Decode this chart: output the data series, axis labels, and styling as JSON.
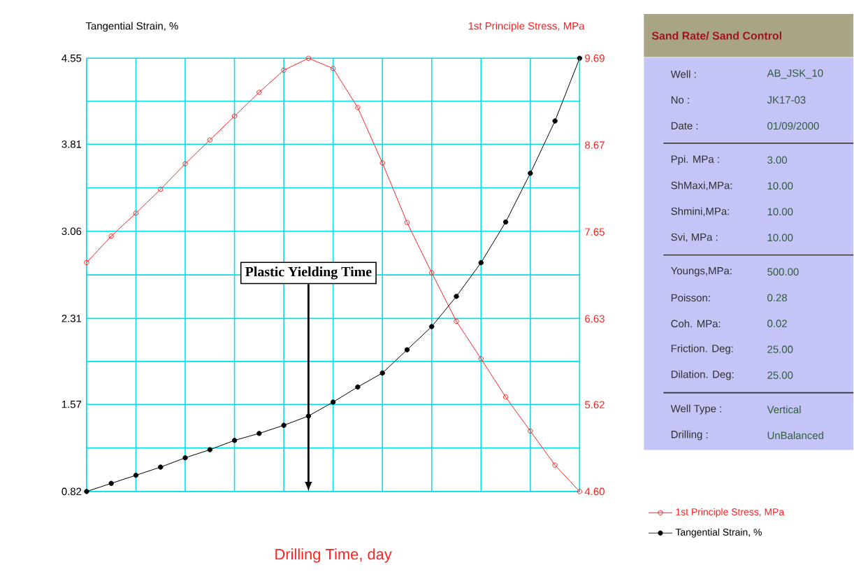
{
  "chart_data": [
    {
      "type": "line",
      "xlabel": "Drilling Time, day",
      "ylabel": "Tangential Strain, %",
      "y2label": "1st Principle Stress, MPa",
      "categories": [
        null,
        null,
        null,
        null,
        null,
        null,
        null,
        null,
        null,
        null,
        null,
        null,
        null,
        null,
        null,
        null,
        null,
        null,
        null,
        null,
        null
      ],
      "series": [
        {
          "name": "1st Principle Stress, MPa",
          "color": "#ff2020",
          "axis": "y2",
          "values": [
            7.29,
            7.6,
            7.87,
            8.15,
            8.45,
            8.73,
            9.01,
            9.29,
            9.55,
            9.69,
            9.57,
            9.11,
            8.46,
            7.76,
            7.17,
            6.6,
            6.16,
            5.71,
            5.31,
            4.91,
            4.6
          ]
        },
        {
          "name": "Tangential Strain, %",
          "color": "#000000",
          "axis": "y",
          "values": [
            0.82,
            0.89,
            0.96,
            1.03,
            1.11,
            1.18,
            1.26,
            1.32,
            1.39,
            1.47,
            1.59,
            1.72,
            1.84,
            2.04,
            2.24,
            2.5,
            2.79,
            3.14,
            3.56,
            4.01,
            4.55
          ]
        }
      ],
      "ylim": [
        0.82,
        4.55
      ],
      "yticks": [
        0.82,
        {
          "value": 1.195,
          "label": null
        },
        1.57,
        {
          "value": 1.94,
          "label": null
        },
        2.31,
        {
          "value": 2.685,
          "label": null
        },
        3.06,
        {
          "value": 3.435,
          "label": null
        },
        3.81,
        {
          "value": 4.18,
          "label": null
        },
        4.55
      ],
      "y2lim": [
        4.6,
        9.69
      ],
      "y2ticks": [
        {
          "value": 4.6,
          "label": "4.60"
        },
        5.62,
        6.63,
        7.65,
        8.67,
        9.69
      ],
      "annotations": [
        "Plastic Yielding Time"
      ],
      "grid": true,
      "legend": "bottom right",
      "marker": "circle",
      "tick_labels": "y"
    },
    {
      "type": "other",
      "title": "Sand Rate/ Sand Control",
      "annotations": [
        "Well :",
        "AB_JSK_10",
        "No :",
        "JK17-03",
        "Date :",
        "01/09/2000",
        "Ppi. MPa :",
        "3.00",
        "ShMaxi,MPa:",
        "10.00",
        "Shmini,MPa:",
        "10.00",
        "Svi, MPa :",
        "10.00",
        "Youngs,MPa:",
        "500.00",
        "Poisson:",
        "0.28",
        "Coh. MPa:",
        "0.02",
        "Friction. Deg:",
        "25.00",
        "Dilation. Deg:",
        "25.00",
        "Well Type :",
        "Vertical",
        "Drilling :",
        "UnBalanced"
      ]
    }
  ]
}
